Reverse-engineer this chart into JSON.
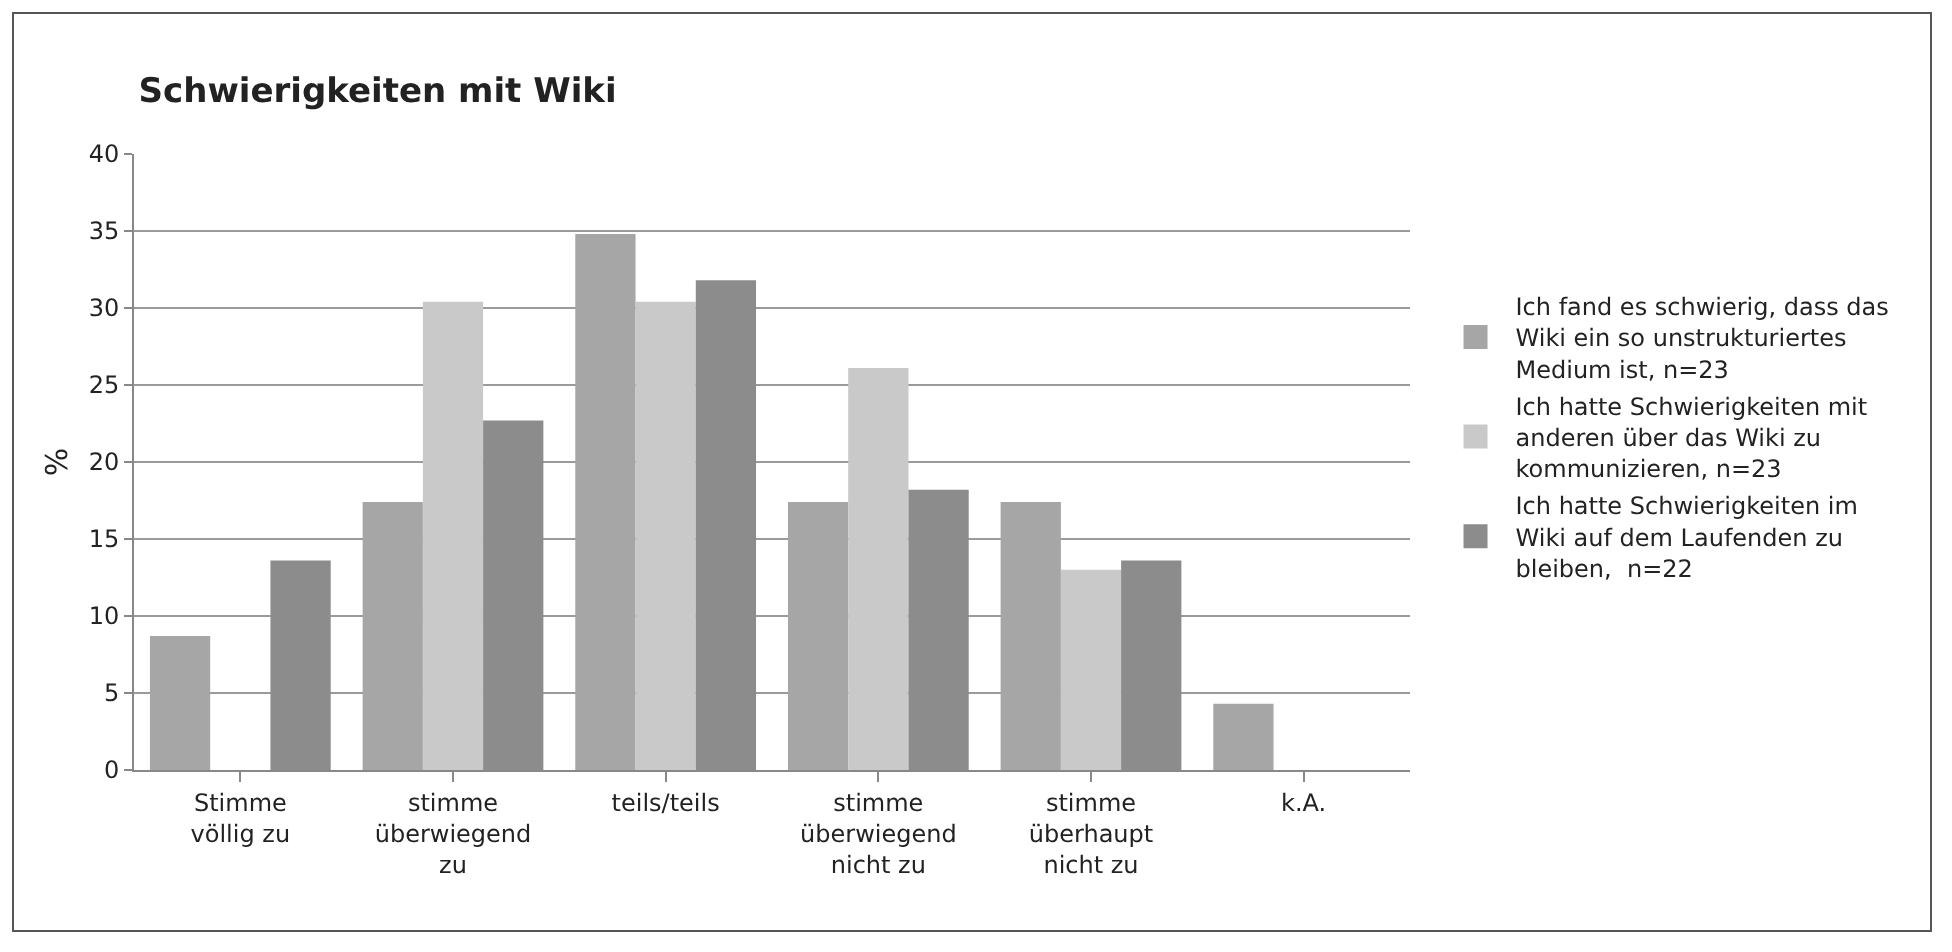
{
  "chart_data": {
    "type": "bar",
    "title": "Schwierigkeiten mit Wiki",
    "ylabel": "%",
    "categories": [
      "Stimme völlig zu",
      "stimme überwiegend zu",
      "teils/teils",
      "stimme überwiegend nicht zu",
      "stimme überhaupt nicht zu",
      "k.A."
    ],
    "series": [
      {
        "name": "Ich fand es schwierig, dass das Wiki ein so unstrukturiertes Medium ist, n=23",
        "color": "#a6a6a6",
        "values": [
          8.7,
          17.4,
          34.8,
          17.4,
          17.4,
          4.3
        ]
      },
      {
        "name": "Ich hatte Schwierigkeiten mit anderen über das Wiki zu kommunizieren, n=23",
        "color": "#c9c9c9",
        "values": [
          0,
          30.4,
          30.4,
          26.1,
          13.0,
          0
        ]
      },
      {
        "name": "Ich hatte Schwierigkeiten im Wiki auf dem Laufenden zu bleiben,  n=22",
        "color": "#8c8c8c",
        "values": [
          13.6,
          22.7,
          31.8,
          18.2,
          13.6,
          0
        ]
      }
    ],
    "ylim": [
      0,
      40
    ],
    "yticks": [
      0,
      5,
      10,
      15,
      20,
      25,
      30,
      35,
      40
    ],
    "grid": "y",
    "legend": "right"
  }
}
